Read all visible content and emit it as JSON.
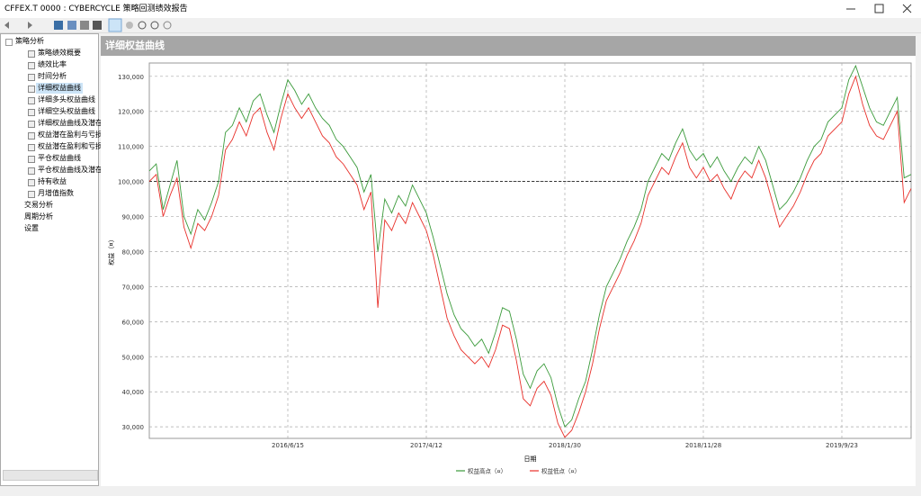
{
  "window": {
    "title": "CFFEX.T 0000 : CYBERCYCLE 策略回测绩效报告"
  },
  "tree": [
    {
      "label": "策略分析",
      "children": [
        "策略绩效概要",
        "绩效比率",
        "时间分析",
        "详细权益曲线",
        "详细多头权益曲线",
        "详细空头权益曲线",
        "详细权益曲线及潜在",
        "权益潜在盈利与亏损",
        "权益潜在盈利和亏损",
        "平仓权益曲线",
        "平仓权益曲线及潜在",
        "持有收益",
        "月增值指数"
      ]
    },
    {
      "label": "交易分析",
      "children": []
    },
    {
      "label": "周期分析",
      "children": []
    },
    {
      "label": "设置",
      "children": []
    }
  ],
  "chart_data": {
    "type": "line",
    "title": "详细权益曲线",
    "x_label": "日期",
    "y_label": "权益（¤）",
    "xlim": [
      0,
      110
    ],
    "xticks": [
      {
        "value": 20,
        "label": "2016/6/15"
      },
      {
        "value": 40,
        "label": "2017/4/12"
      },
      {
        "value": 60,
        "label": "2018/1/30"
      },
      {
        "value": 80,
        "label": "2018/11/28"
      },
      {
        "value": 100,
        "label": "2019/9/23"
      }
    ],
    "ylim": [
      26700,
      133800
    ],
    "yticks": [
      {
        "value": 30000,
        "label": "30,000"
      },
      {
        "value": 40000,
        "label": "40,000"
      },
      {
        "value": 50000,
        "label": "50,000"
      },
      {
        "value": 60000,
        "label": "60,000"
      },
      {
        "value": 70000,
        "label": "70,000"
      },
      {
        "value": 80000,
        "label": "80,000"
      },
      {
        "value": 90000,
        "label": "90,000"
      },
      {
        "value": 100000,
        "label": "100,000"
      },
      {
        "value": 110000,
        "label": "110,000"
      },
      {
        "value": 120000,
        "label": "120,000"
      },
      {
        "value": 130000,
        "label": "130,000"
      }
    ],
    "grid": true,
    "hline": 100000,
    "legend": "bottom",
    "series": [
      {
        "name": "权益高点（¤）",
        "color": "#3a9a3a",
        "values": [
          103000,
          105000,
          92000,
          99000,
          106000,
          90000,
          85000,
          92000,
          89000,
          94000,
          100000,
          114000,
          116000,
          121000,
          117000,
          123000,
          125000,
          119000,
          114000,
          122000,
          129000,
          126000,
          122000,
          125000,
          121000,
          118000,
          116000,
          112000,
          110000,
          107000,
          104000,
          97000,
          102000,
          80000,
          95000,
          91000,
          96000,
          93000,
          99000,
          95000,
          91000,
          84000,
          76000,
          68000,
          62000,
          58000,
          56000,
          53000,
          55000,
          51000,
          57000,
          64000,
          63000,
          55000,
          45000,
          41000,
          46000,
          48000,
          44000,
          36000,
          30000,
          32000,
          38000,
          43000,
          52000,
          62000,
          70000,
          74000,
          78000,
          83000,
          87000,
          92000,
          100000,
          104000,
          108000,
          106000,
          111000,
          115000,
          109000,
          106000,
          108000,
          104000,
          107000,
          103000,
          100000,
          104000,
          107000,
          105000,
          110000,
          106000,
          99000,
          92000,
          94000,
          97000,
          101000,
          106000,
          110000,
          112000,
          117000,
          119000,
          121000,
          129000,
          133000,
          127000,
          121000,
          117000,
          116000,
          120000,
          124000,
          101000,
          102000
        ]
      },
      {
        "name": "权益低点（¤）",
        "color": "#e8302a",
        "values": [
          100000,
          102000,
          90000,
          96000,
          101000,
          87000,
          81000,
          88000,
          86000,
          90000,
          96000,
          109000,
          112000,
          117000,
          113000,
          119000,
          121000,
          114000,
          109000,
          118000,
          125000,
          121000,
          118000,
          121000,
          117000,
          113000,
          111000,
          107000,
          105000,
          102000,
          99000,
          92000,
          97000,
          64000,
          89000,
          86000,
          91000,
          88000,
          94000,
          90000,
          86000,
          79000,
          70000,
          61000,
          56000,
          52000,
          50000,
          48000,
          50000,
          47000,
          52000,
          59000,
          58000,
          49000,
          38000,
          36000,
          41000,
          43000,
          39000,
          31000,
          27000,
          29000,
          34000,
          40000,
          48000,
          58000,
          66000,
          70000,
          74000,
          79000,
          83000,
          88000,
          96000,
          100000,
          104000,
          102000,
          107000,
          111000,
          104000,
          101000,
          104000,
          100000,
          102000,
          98000,
          95000,
          100000,
          103000,
          101000,
          106000,
          101000,
          94000,
          87000,
          90000,
          93000,
          97000,
          102000,
          106000,
          108000,
          113000,
          115000,
          117000,
          125000,
          130000,
          122000,
          116000,
          113000,
          112000,
          116000,
          120000,
          94000,
          98000
        ]
      }
    ]
  }
}
